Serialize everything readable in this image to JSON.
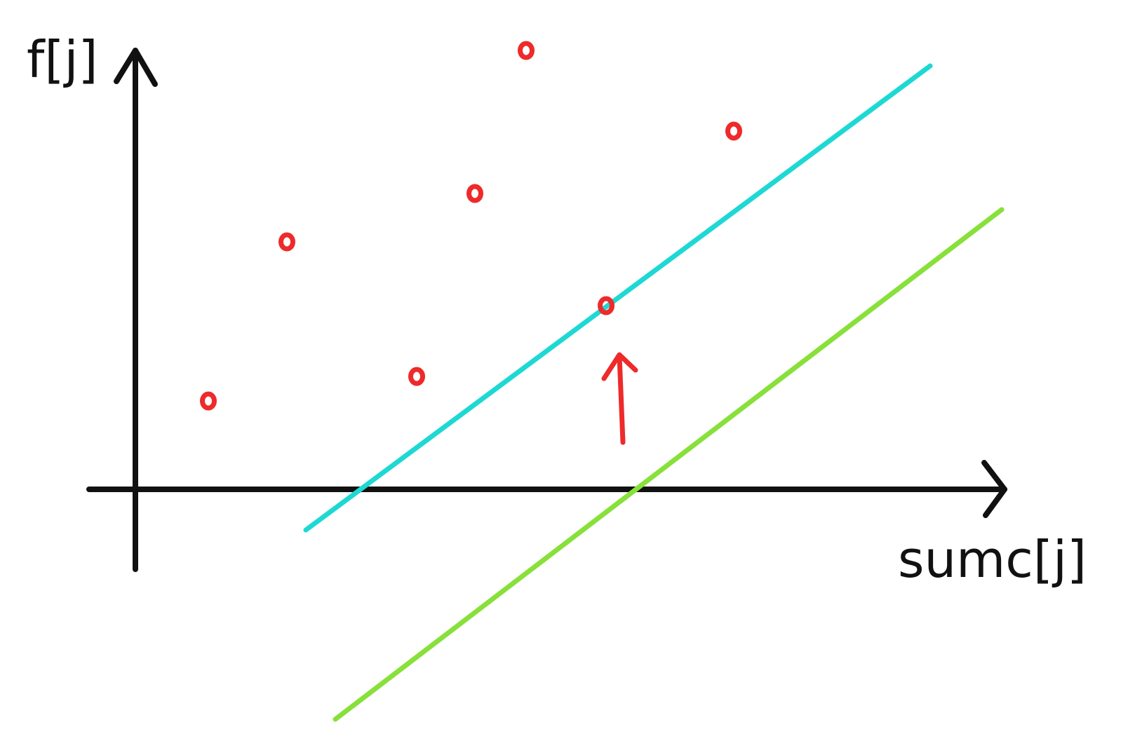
{
  "diagram": {
    "y_axis_label": "f[j]",
    "x_axis_label": "sumc[j]",
    "point_count": 7,
    "lines": [
      {
        "name": "cyan-line",
        "color": "#1ed8d4"
      },
      {
        "name": "green-line",
        "color": "#88e03a"
      }
    ],
    "colors": {
      "axes": "#111111",
      "points": "#ee2a2a",
      "arrow": "#ee2a2a",
      "background": "#ffffff"
    }
  }
}
